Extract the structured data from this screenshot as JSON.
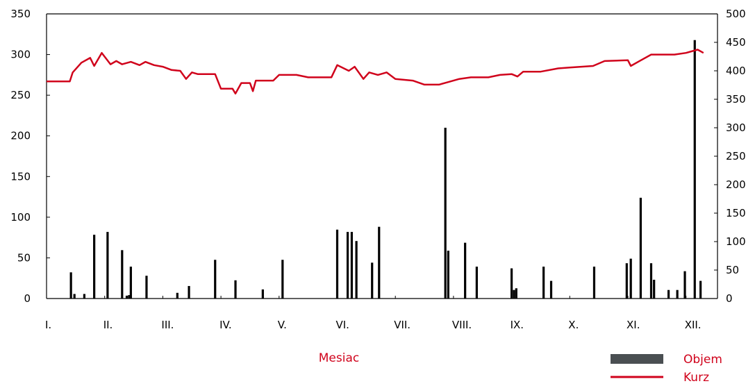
{
  "chart_data": {
    "type": "bar+line",
    "xlabel": "Mesiac",
    "months": [
      "I.",
      "II.",
      "III.",
      "IV.",
      "V.",
      "VI.",
      "VII.",
      "VIII.",
      "IX.",
      "X.",
      "XI.",
      "XII."
    ],
    "ylim_left": [
      0,
      350
    ],
    "yticks_left": [
      0,
      50,
      100,
      150,
      200,
      250,
      300,
      350
    ],
    "ylim_right": [
      0,
      500
    ],
    "yticks_right": [
      0,
      50,
      100,
      150,
      200,
      250,
      300,
      350,
      400,
      450,
      500
    ],
    "grid": false,
    "legend_position": "bottom-right",
    "colors": {
      "volume": "#000000",
      "volume_legend": "#4a4f52",
      "price": "#d0021b",
      "labels": "#d0021b"
    },
    "series": [
      {
        "name": "Objem",
        "kind": "bar",
        "axis": "right",
        "points": [
          {
            "m": 0.42,
            "v": 46
          },
          {
            "m": 0.48,
            "v": 8
          },
          {
            "m": 0.65,
            "v": 8
          },
          {
            "m": 0.82,
            "v": 112
          },
          {
            "m": 1.05,
            "v": 117
          },
          {
            "m": 1.3,
            "v": 85
          },
          {
            "m": 1.38,
            "v": 5
          },
          {
            "m": 1.42,
            "v": 6
          },
          {
            "m": 1.45,
            "v": 56
          },
          {
            "m": 1.72,
            "v": 40
          },
          {
            "m": 2.25,
            "v": 10
          },
          {
            "m": 2.45,
            "v": 22
          },
          {
            "m": 2.9,
            "v": 68
          },
          {
            "m": 3.25,
            "v": 32
          },
          {
            "m": 3.72,
            "v": 16
          },
          {
            "m": 4.06,
            "v": 68
          },
          {
            "m": 5.0,
            "v": 121
          },
          {
            "m": 5.18,
            "v": 117
          },
          {
            "m": 5.25,
            "v": 117
          },
          {
            "m": 5.33,
            "v": 101
          },
          {
            "m": 5.6,
            "v": 63
          },
          {
            "m": 5.72,
            "v": 126
          },
          {
            "m": 6.86,
            "v": 300
          },
          {
            "m": 6.91,
            "v": 84
          },
          {
            "m": 7.2,
            "v": 98
          },
          {
            "m": 7.4,
            "v": 56
          },
          {
            "m": 8.0,
            "v": 53
          },
          {
            "m": 8.04,
            "v": 15
          },
          {
            "m": 8.08,
            "v": 18
          },
          {
            "m": 8.55,
            "v": 56
          },
          {
            "m": 8.68,
            "v": 31
          },
          {
            "m": 9.42,
            "v": 56
          },
          {
            "m": 9.98,
            "v": 62
          },
          {
            "m": 10.05,
            "v": 70
          },
          {
            "m": 10.22,
            "v": 177
          },
          {
            "m": 10.4,
            "v": 62
          },
          {
            "m": 10.45,
            "v": 33
          },
          {
            "m": 10.7,
            "v": 15
          },
          {
            "m": 10.85,
            "v": 15
          },
          {
            "m": 10.98,
            "v": 48
          },
          {
            "m": 11.15,
            "v": 454
          },
          {
            "m": 11.25,
            "v": 31
          }
        ]
      },
      {
        "name": "Kurz",
        "kind": "line",
        "axis": "left",
        "points": [
          {
            "m": 0.0,
            "v": 267
          },
          {
            "m": 0.4,
            "v": 267
          },
          {
            "m": 0.45,
            "v": 278
          },
          {
            "m": 0.6,
            "v": 290
          },
          {
            "m": 0.75,
            "v": 296
          },
          {
            "m": 0.82,
            "v": 286
          },
          {
            "m": 0.95,
            "v": 302
          },
          {
            "m": 1.1,
            "v": 288
          },
          {
            "m": 1.2,
            "v": 292
          },
          {
            "m": 1.3,
            "v": 288
          },
          {
            "m": 1.45,
            "v": 291
          },
          {
            "m": 1.6,
            "v": 287
          },
          {
            "m": 1.7,
            "v": 291
          },
          {
            "m": 1.85,
            "v": 287
          },
          {
            "m": 2.0,
            "v": 285
          },
          {
            "m": 2.15,
            "v": 281
          },
          {
            "m": 2.3,
            "v": 280
          },
          {
            "m": 2.4,
            "v": 270
          },
          {
            "m": 2.5,
            "v": 278
          },
          {
            "m": 2.6,
            "v": 276
          },
          {
            "m": 2.9,
            "v": 276
          },
          {
            "m": 3.0,
            "v": 258
          },
          {
            "m": 3.2,
            "v": 258
          },
          {
            "m": 3.25,
            "v": 252
          },
          {
            "m": 3.35,
            "v": 265
          },
          {
            "m": 3.5,
            "v": 265
          },
          {
            "m": 3.55,
            "v": 255
          },
          {
            "m": 3.6,
            "v": 268
          },
          {
            "m": 3.9,
            "v": 268
          },
          {
            "m": 4.0,
            "v": 275
          },
          {
            "m": 4.3,
            "v": 275
          },
          {
            "m": 4.5,
            "v": 272
          },
          {
            "m": 4.9,
            "v": 272
          },
          {
            "m": 5.0,
            "v": 287
          },
          {
            "m": 5.2,
            "v": 280
          },
          {
            "m": 5.3,
            "v": 285
          },
          {
            "m": 5.45,
            "v": 270
          },
          {
            "m": 5.55,
            "v": 278
          },
          {
            "m": 5.7,
            "v": 275
          },
          {
            "m": 5.85,
            "v": 278
          },
          {
            "m": 6.0,
            "v": 270
          },
          {
            "m": 6.3,
            "v": 268
          },
          {
            "m": 6.5,
            "v": 263
          },
          {
            "m": 6.75,
            "v": 263
          },
          {
            "m": 6.9,
            "v": 266
          },
          {
            "m": 7.1,
            "v": 270
          },
          {
            "m": 7.3,
            "v": 272
          },
          {
            "m": 7.6,
            "v": 272
          },
          {
            "m": 7.8,
            "v": 275
          },
          {
            "m": 8.0,
            "v": 276
          },
          {
            "m": 8.1,
            "v": 273
          },
          {
            "m": 8.2,
            "v": 279
          },
          {
            "m": 8.5,
            "v": 279
          },
          {
            "m": 8.8,
            "v": 283
          },
          {
            "m": 9.0,
            "v": 284
          },
          {
            "m": 9.4,
            "v": 286
          },
          {
            "m": 9.6,
            "v": 292
          },
          {
            "m": 10.0,
            "v": 293
          },
          {
            "m": 10.05,
            "v": 286
          },
          {
            "m": 10.2,
            "v": 292
          },
          {
            "m": 10.4,
            "v": 300
          },
          {
            "m": 10.8,
            "v": 300
          },
          {
            "m": 11.0,
            "v": 302
          },
          {
            "m": 11.2,
            "v": 306
          },
          {
            "m": 11.3,
            "v": 302
          }
        ]
      }
    ]
  }
}
